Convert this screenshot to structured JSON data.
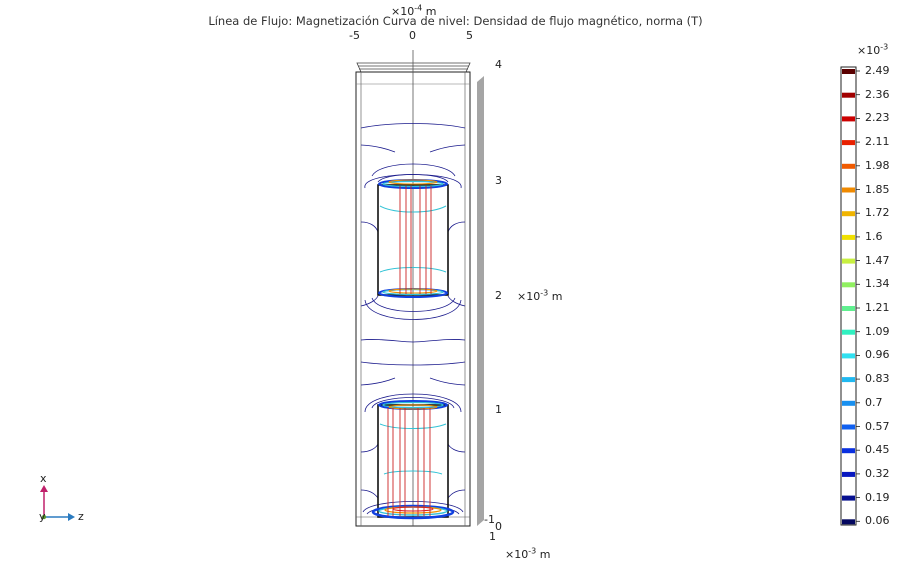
{
  "plot": {
    "title": "Línea de Flujo: Magnetización  Curva de nivel: Densidad de flujo magnético, norma (T)",
    "top_axis": {
      "exponent_label": "×10",
      "exponent": "-4",
      "unit": " m",
      "ticks": [
        "-5",
        "0",
        "5"
      ]
    },
    "right_axis": {
      "exponent_label": "×10",
      "exponent": "-3",
      "unit": " m",
      "ticks": [
        "4",
        "3",
        "2",
        "1",
        "0"
      ]
    },
    "bottom_axis": {
      "exponent_label": "×10",
      "exponent": "-3",
      "unit": " m",
      "ticks": [
        "-1",
        "1"
      ]
    },
    "colors": {
      "frame": "#111111",
      "contour_outer": "#1a1a8c",
      "flux_line": "#cc2222",
      "cyan": "#33c3d6",
      "shade": "#999999"
    }
  },
  "colorbar": {
    "exponent_label": "×10",
    "exponent": "-3",
    "labels": [
      "2.49",
      "2.36",
      "2.23",
      "2.11",
      "1.98",
      "1.85",
      "1.72",
      "1.6",
      "1.47",
      "1.34",
      "1.21",
      "1.09",
      "0.96",
      "0.83",
      "0.7",
      "0.57",
      "0.45",
      "0.32",
      "0.19",
      "0.06"
    ],
    "colors": [
      "#5a0000",
      "#a00000",
      "#cc0000",
      "#e82000",
      "#f05a00",
      "#f08a00",
      "#f0b400",
      "#f0e000",
      "#c8f040",
      "#90f060",
      "#60f090",
      "#30f0c0",
      "#30e0f0",
      "#20b8f0",
      "#1890f0",
      "#1060f0",
      "#0a30e0",
      "#0818c0",
      "#061090",
      "#040860"
    ]
  },
  "axis_triad": {
    "x_label": "x",
    "y_label": "y",
    "z_label": "z",
    "colors": {
      "x": "#c0206a",
      "z": "#2b7bc0",
      "y": "#5a9a30"
    }
  }
}
